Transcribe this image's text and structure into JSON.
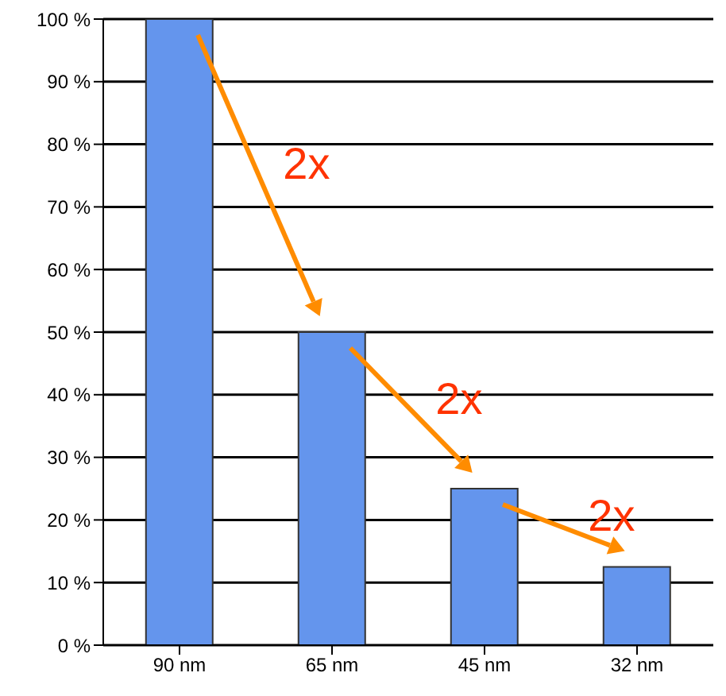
{
  "chart_data": {
    "type": "bar",
    "categories": [
      "90 nm",
      "65 nm",
      "45 nm",
      "32 nm"
    ],
    "values": [
      100,
      50,
      25,
      12.5
    ],
    "color": "#6495ed",
    "ylim": [
      0,
      100
    ],
    "yticks": [
      {
        "value": 0,
        "label": "0 %"
      },
      {
        "value": 10,
        "label": "10 %"
      },
      {
        "value": 20,
        "label": "20 %"
      },
      {
        "value": 30,
        "label": "30 %"
      },
      {
        "value": 40,
        "label": "40 %"
      },
      {
        "value": 50,
        "label": "50 %"
      },
      {
        "value": 60,
        "label": "60 %"
      },
      {
        "value": 70,
        "label": "70 %"
      },
      {
        "value": 80,
        "label": "80 %"
      },
      {
        "value": 90,
        "label": "90 %"
      },
      {
        "value": 100,
        "label": "100 %"
      }
    ],
    "grid": "y",
    "annotations": [
      "2x",
      "2x",
      "2x"
    ]
  }
}
